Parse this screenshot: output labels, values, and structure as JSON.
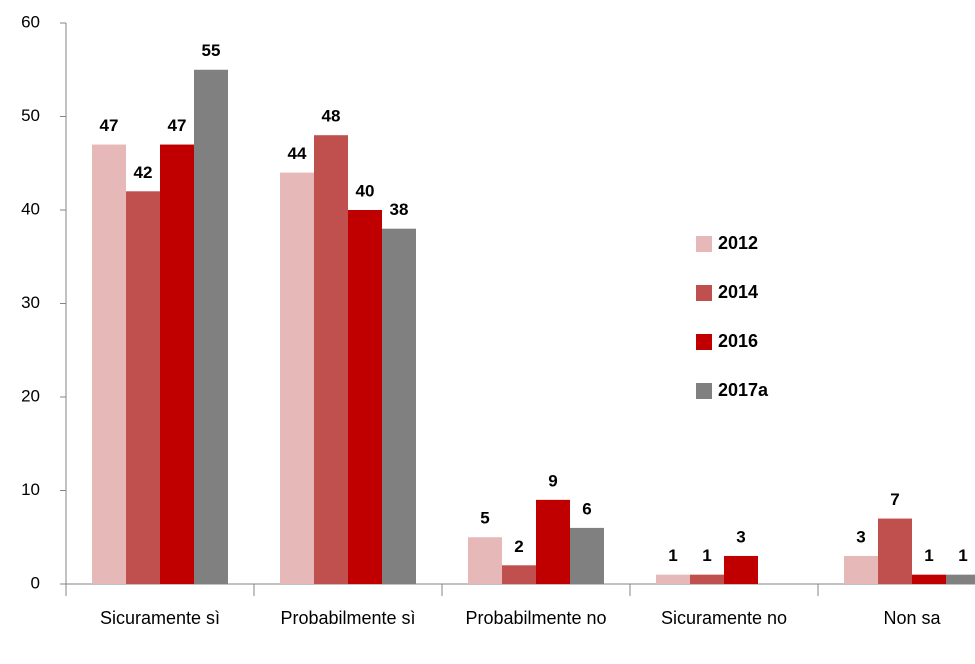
{
  "chart_data": {
    "type": "bar",
    "categories": [
      "Sicuramente sì",
      "Probabilmente sì",
      "Probabilmente no",
      "Sicuramente no",
      "Non sa"
    ],
    "series": [
      {
        "name": "2012",
        "color": "#e6b9b8",
        "values": [
          47,
          44,
          5,
          1,
          3
        ]
      },
      {
        "name": "2014",
        "color": "#c0504d",
        "values": [
          42,
          48,
          2,
          1,
          7
        ]
      },
      {
        "name": "2016",
        "color": "#c00000",
        "values": [
          47,
          40,
          9,
          3,
          1
        ]
      },
      {
        "name": "2017a",
        "color": "#808080",
        "values": [
          55,
          38,
          6,
          null,
          1
        ]
      }
    ],
    "ylim": [
      0,
      60
    ],
    "yticks": [
      0,
      10,
      20,
      30,
      40,
      50,
      60
    ],
    "grid": false,
    "legend": "right"
  }
}
